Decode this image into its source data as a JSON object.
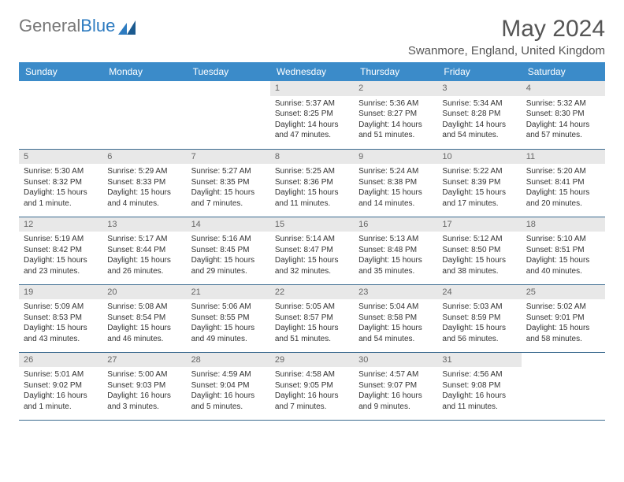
{
  "logo": {
    "text1": "General",
    "text2": "Blue"
  },
  "title": "May 2024",
  "location": "Swanmore, England, United Kingdom",
  "colors": {
    "header_bg": "#3b8bc9",
    "header_text": "#ffffff",
    "daynum_bg": "#e8e8e8",
    "row_border": "#3b6a8f",
    "logo_gray": "#777777",
    "logo_blue": "#2d7bc0"
  },
  "weekdays": [
    "Sunday",
    "Monday",
    "Tuesday",
    "Wednesday",
    "Thursday",
    "Friday",
    "Saturday"
  ],
  "weeks": [
    [
      {
        "day": "",
        "sunrise": "",
        "sunset": "",
        "daylight": ""
      },
      {
        "day": "",
        "sunrise": "",
        "sunset": "",
        "daylight": ""
      },
      {
        "day": "",
        "sunrise": "",
        "sunset": "",
        "daylight": ""
      },
      {
        "day": "1",
        "sunrise": "Sunrise: 5:37 AM",
        "sunset": "Sunset: 8:25 PM",
        "daylight": "Daylight: 14 hours and 47 minutes."
      },
      {
        "day": "2",
        "sunrise": "Sunrise: 5:36 AM",
        "sunset": "Sunset: 8:27 PM",
        "daylight": "Daylight: 14 hours and 51 minutes."
      },
      {
        "day": "3",
        "sunrise": "Sunrise: 5:34 AM",
        "sunset": "Sunset: 8:28 PM",
        "daylight": "Daylight: 14 hours and 54 minutes."
      },
      {
        "day": "4",
        "sunrise": "Sunrise: 5:32 AM",
        "sunset": "Sunset: 8:30 PM",
        "daylight": "Daylight: 14 hours and 57 minutes."
      }
    ],
    [
      {
        "day": "5",
        "sunrise": "Sunrise: 5:30 AM",
        "sunset": "Sunset: 8:32 PM",
        "daylight": "Daylight: 15 hours and 1 minute."
      },
      {
        "day": "6",
        "sunrise": "Sunrise: 5:29 AM",
        "sunset": "Sunset: 8:33 PM",
        "daylight": "Daylight: 15 hours and 4 minutes."
      },
      {
        "day": "7",
        "sunrise": "Sunrise: 5:27 AM",
        "sunset": "Sunset: 8:35 PM",
        "daylight": "Daylight: 15 hours and 7 minutes."
      },
      {
        "day": "8",
        "sunrise": "Sunrise: 5:25 AM",
        "sunset": "Sunset: 8:36 PM",
        "daylight": "Daylight: 15 hours and 11 minutes."
      },
      {
        "day": "9",
        "sunrise": "Sunrise: 5:24 AM",
        "sunset": "Sunset: 8:38 PM",
        "daylight": "Daylight: 15 hours and 14 minutes."
      },
      {
        "day": "10",
        "sunrise": "Sunrise: 5:22 AM",
        "sunset": "Sunset: 8:39 PM",
        "daylight": "Daylight: 15 hours and 17 minutes."
      },
      {
        "day": "11",
        "sunrise": "Sunrise: 5:20 AM",
        "sunset": "Sunset: 8:41 PM",
        "daylight": "Daylight: 15 hours and 20 minutes."
      }
    ],
    [
      {
        "day": "12",
        "sunrise": "Sunrise: 5:19 AM",
        "sunset": "Sunset: 8:42 PM",
        "daylight": "Daylight: 15 hours and 23 minutes."
      },
      {
        "day": "13",
        "sunrise": "Sunrise: 5:17 AM",
        "sunset": "Sunset: 8:44 PM",
        "daylight": "Daylight: 15 hours and 26 minutes."
      },
      {
        "day": "14",
        "sunrise": "Sunrise: 5:16 AM",
        "sunset": "Sunset: 8:45 PM",
        "daylight": "Daylight: 15 hours and 29 minutes."
      },
      {
        "day": "15",
        "sunrise": "Sunrise: 5:14 AM",
        "sunset": "Sunset: 8:47 PM",
        "daylight": "Daylight: 15 hours and 32 minutes."
      },
      {
        "day": "16",
        "sunrise": "Sunrise: 5:13 AM",
        "sunset": "Sunset: 8:48 PM",
        "daylight": "Daylight: 15 hours and 35 minutes."
      },
      {
        "day": "17",
        "sunrise": "Sunrise: 5:12 AM",
        "sunset": "Sunset: 8:50 PM",
        "daylight": "Daylight: 15 hours and 38 minutes."
      },
      {
        "day": "18",
        "sunrise": "Sunrise: 5:10 AM",
        "sunset": "Sunset: 8:51 PM",
        "daylight": "Daylight: 15 hours and 40 minutes."
      }
    ],
    [
      {
        "day": "19",
        "sunrise": "Sunrise: 5:09 AM",
        "sunset": "Sunset: 8:53 PM",
        "daylight": "Daylight: 15 hours and 43 minutes."
      },
      {
        "day": "20",
        "sunrise": "Sunrise: 5:08 AM",
        "sunset": "Sunset: 8:54 PM",
        "daylight": "Daylight: 15 hours and 46 minutes."
      },
      {
        "day": "21",
        "sunrise": "Sunrise: 5:06 AM",
        "sunset": "Sunset: 8:55 PM",
        "daylight": "Daylight: 15 hours and 49 minutes."
      },
      {
        "day": "22",
        "sunrise": "Sunrise: 5:05 AM",
        "sunset": "Sunset: 8:57 PM",
        "daylight": "Daylight: 15 hours and 51 minutes."
      },
      {
        "day": "23",
        "sunrise": "Sunrise: 5:04 AM",
        "sunset": "Sunset: 8:58 PM",
        "daylight": "Daylight: 15 hours and 54 minutes."
      },
      {
        "day": "24",
        "sunrise": "Sunrise: 5:03 AM",
        "sunset": "Sunset: 8:59 PM",
        "daylight": "Daylight: 15 hours and 56 minutes."
      },
      {
        "day": "25",
        "sunrise": "Sunrise: 5:02 AM",
        "sunset": "Sunset: 9:01 PM",
        "daylight": "Daylight: 15 hours and 58 minutes."
      }
    ],
    [
      {
        "day": "26",
        "sunrise": "Sunrise: 5:01 AM",
        "sunset": "Sunset: 9:02 PM",
        "daylight": "Daylight: 16 hours and 1 minute."
      },
      {
        "day": "27",
        "sunrise": "Sunrise: 5:00 AM",
        "sunset": "Sunset: 9:03 PM",
        "daylight": "Daylight: 16 hours and 3 minutes."
      },
      {
        "day": "28",
        "sunrise": "Sunrise: 4:59 AM",
        "sunset": "Sunset: 9:04 PM",
        "daylight": "Daylight: 16 hours and 5 minutes."
      },
      {
        "day": "29",
        "sunrise": "Sunrise: 4:58 AM",
        "sunset": "Sunset: 9:05 PM",
        "daylight": "Daylight: 16 hours and 7 minutes."
      },
      {
        "day": "30",
        "sunrise": "Sunrise: 4:57 AM",
        "sunset": "Sunset: 9:07 PM",
        "daylight": "Daylight: 16 hours and 9 minutes."
      },
      {
        "day": "31",
        "sunrise": "Sunrise: 4:56 AM",
        "sunset": "Sunset: 9:08 PM",
        "daylight": "Daylight: 16 hours and 11 minutes."
      },
      {
        "day": "",
        "sunrise": "",
        "sunset": "",
        "daylight": ""
      }
    ]
  ]
}
